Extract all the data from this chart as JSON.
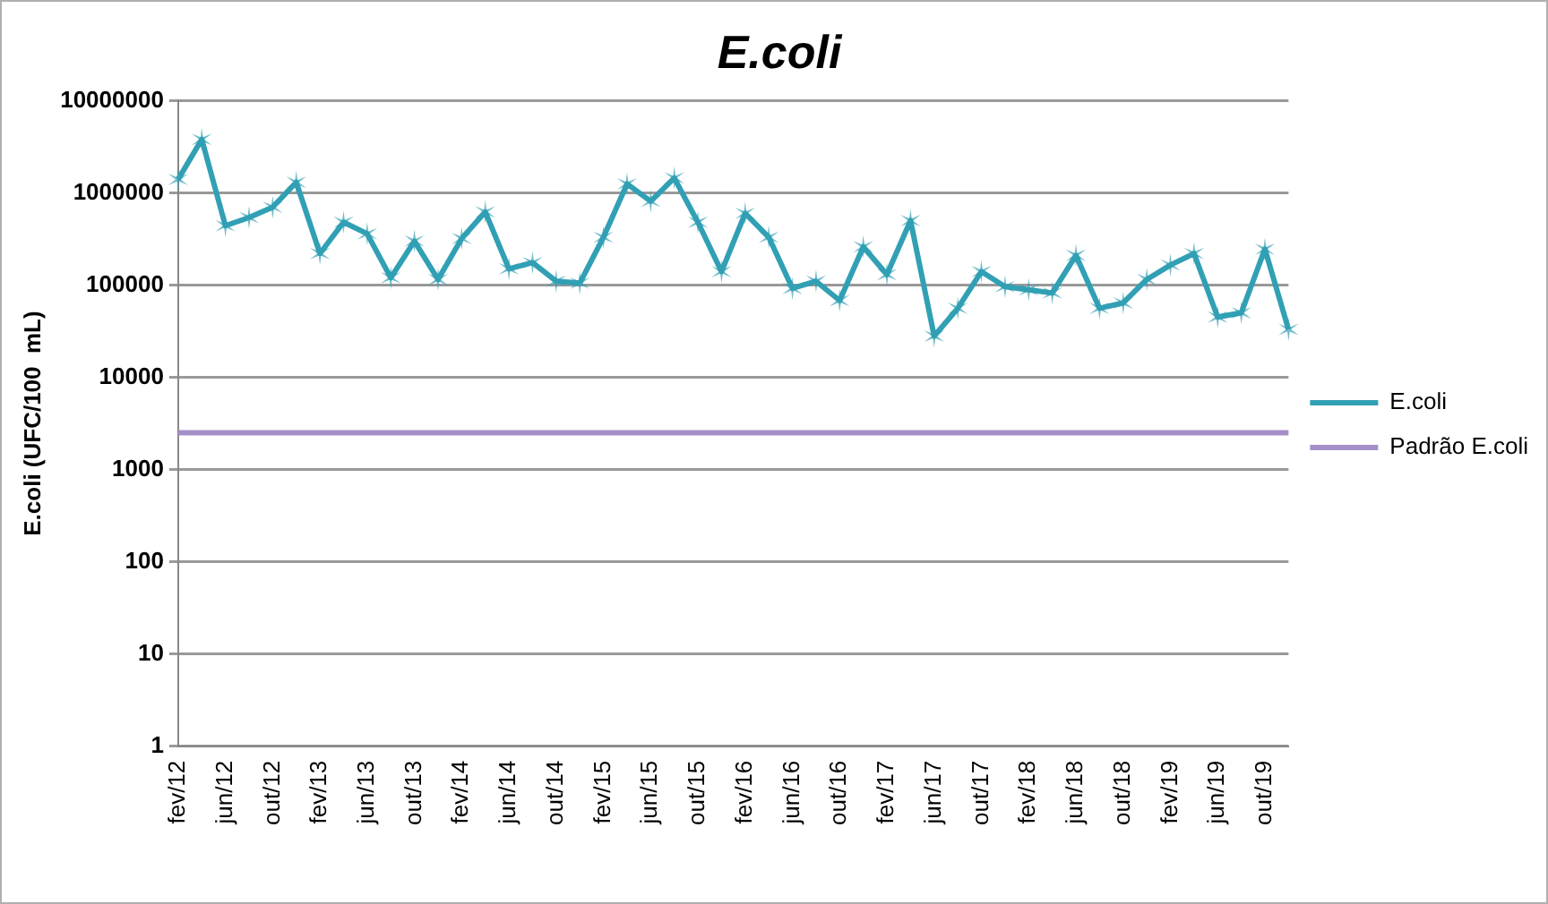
{
  "chart_data": {
    "type": "line",
    "title": "E.coli",
    "ylabel": "E.coli (UFC/100  mL)",
    "categories": [
      "fev/12",
      null,
      "jun/12",
      null,
      "out/12",
      null,
      "fev/13",
      null,
      "jun/13",
      null,
      "out/13",
      null,
      "fev/14",
      null,
      "jun/14",
      null,
      "out/14",
      null,
      "fev/15",
      null,
      "jun/15",
      null,
      "out/15",
      null,
      "fev/16",
      null,
      "jun/16",
      null,
      "out/16",
      null,
      "fev/17",
      null,
      "jun/17",
      null,
      "out/17",
      null,
      "fev/18",
      null,
      "jun/18",
      null,
      "out/18",
      null,
      "fev/19",
      null,
      "jun/19",
      null,
      "out/19",
      null
    ],
    "series": [
      {
        "name": "E.coli",
        "color": "#31a0b4",
        "marker": "cross",
        "values": [
          1400000,
          3800000,
          440000,
          540000,
          700000,
          1300000,
          220000,
          480000,
          360000,
          120000,
          300000,
          115000,
          320000,
          620000,
          150000,
          175000,
          110000,
          105000,
          330000,
          1250000,
          810000,
          1450000,
          480000,
          140000,
          600000,
          330000,
          92000,
          110000,
          68000,
          260000,
          130000,
          500000,
          28000,
          56000,
          140000,
          96000,
          89000,
          82000,
          210000,
          56000,
          64000,
          115000,
          165000,
          220000,
          45000,
          50000,
          245000,
          33000
        ]
      },
      {
        "name": "Padrão E.coli",
        "color": "#a58fc8",
        "marker": "none",
        "values": [
          2500,
          2500,
          2500,
          2500,
          2500,
          2500,
          2500,
          2500,
          2500,
          2500,
          2500,
          2500,
          2500,
          2500,
          2500,
          2500,
          2500,
          2500,
          2500,
          2500,
          2500,
          2500,
          2500,
          2500,
          2500,
          2500,
          2500,
          2500,
          2500,
          2500,
          2500,
          2500,
          2500,
          2500,
          2500,
          2500,
          2500,
          2500,
          2500,
          2500,
          2500,
          2500,
          2500,
          2500,
          2500,
          2500,
          2500,
          2500
        ]
      }
    ],
    "log": "y",
    "ylim": [
      1,
      10000000
    ],
    "yticks": [
      1,
      10,
      100,
      1000,
      10000,
      100000,
      1000000,
      10000000
    ],
    "grid": "y",
    "legend": "right",
    "line_style": "solid"
  }
}
